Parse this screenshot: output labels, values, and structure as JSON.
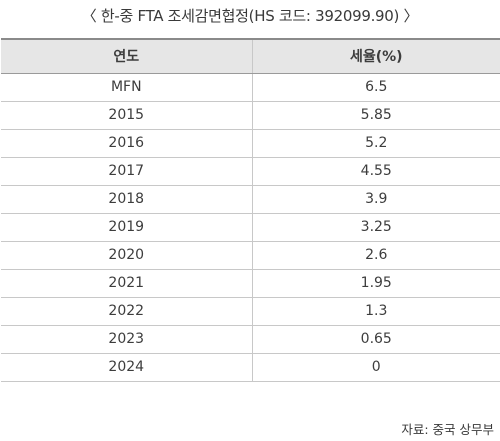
{
  "title": "〈 한-중 FTA 조세감면협정(HS 코드: 392099.90) 〉",
  "table": {
    "headers": [
      "연도",
      "세율(%)"
    ],
    "rows": [
      [
        "MFN",
        "6.5"
      ],
      [
        "2015",
        "5.85"
      ],
      [
        "2016",
        "5.2"
      ],
      [
        "2017",
        "4.55"
      ],
      [
        "2018",
        "3.9"
      ],
      [
        "2019",
        "3.25"
      ],
      [
        "2020",
        "2.6"
      ],
      [
        "2021",
        "1.95"
      ],
      [
        "2022",
        "1.3"
      ],
      [
        "2023",
        "0.65"
      ],
      [
        "2024",
        "0"
      ]
    ]
  },
  "source": "자료: 중국 상무부"
}
